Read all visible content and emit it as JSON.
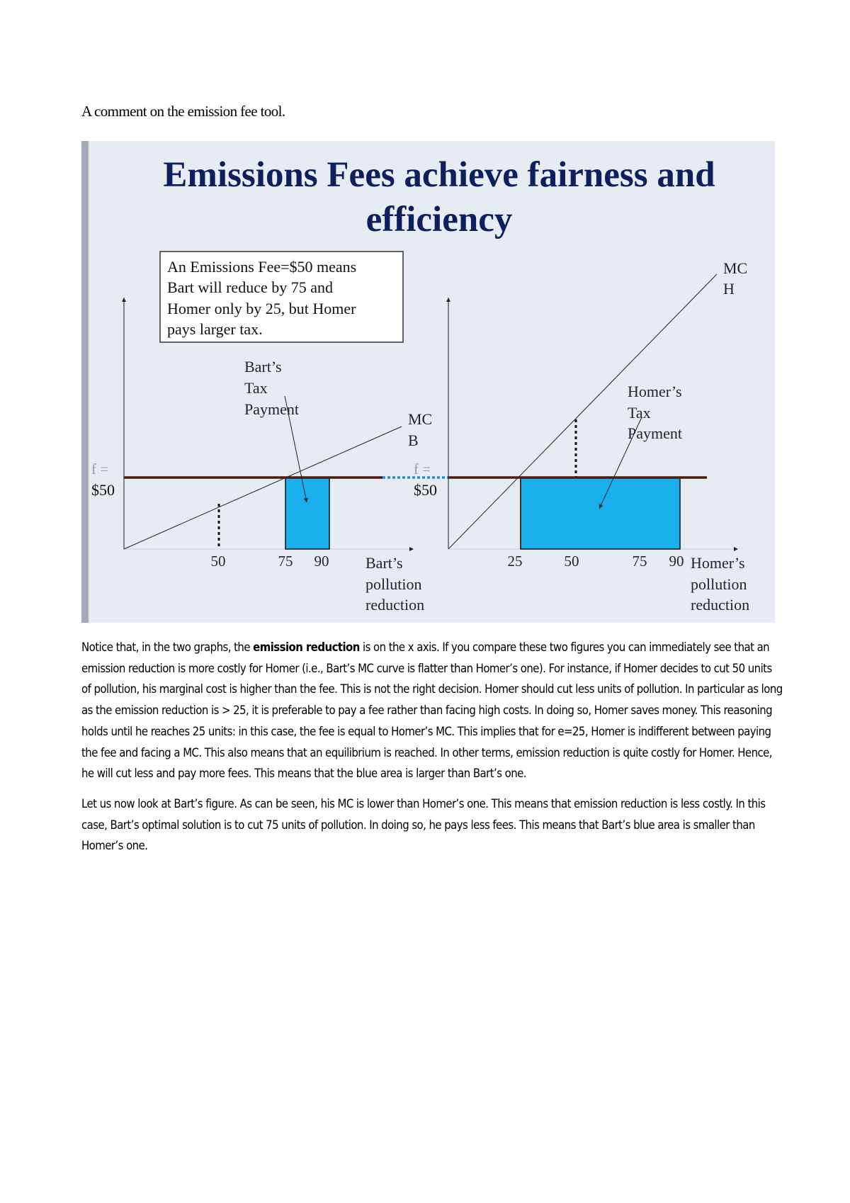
{
  "heading": "A comment on the emission fee tool.",
  "slide": {
    "title_line1": "Emissions Fees achieve fairness and",
    "title_line2": "efficiency",
    "callout": [
      "An Emissions Fee=$50 means",
      "Bart will reduce by 75 and",
      "Homer only by 25, but Homer",
      "pays larger tax."
    ],
    "fee_label_line1": "f =",
    "fee_label_line2": "$50",
    "bart": {
      "tax_label": [
        "Bart’s",
        "Tax",
        "Payment"
      ],
      "mc_label": [
        "MC",
        "B"
      ],
      "ticks": [
        "50",
        "75",
        "90"
      ],
      "xlabel": [
        "Bart’s",
        "pollution",
        "reduction"
      ]
    },
    "homer": {
      "tax_label": [
        "Homer’s",
        "Tax",
        "Payment"
      ],
      "mc_label": [
        "MC",
        "H"
      ],
      "ticks": [
        "25",
        "50",
        "75",
        "90"
      ],
      "xlabel": [
        "Homer’s",
        "pollution",
        "reduction"
      ]
    },
    "colors": {
      "background": "#e7ebf2",
      "title": "#0d1f5c",
      "tax_area": "#19aeec",
      "fee_line": "#4a1a0e",
      "fee_link": "#2a8ad8",
      "fee_label": "#8d99b8"
    }
  },
  "paragraphs": [
    {
      "before": "Notice that, in the two graphs, the ",
      "bold": "emission reduction",
      "after": " is on the x axis. If you compare these two figures you can immediately see that an emission reduction is more costly for Homer (i.e., Bart’s MC curve is flatter than Homer’s one). For instance, if Homer decides to cut 50 units of pollution, his marginal cost is higher than the fee. This is not the right decision. Homer should cut less units of pollution. In particular as long as the emission reduction is > 25, it is preferable to pay a fee rather than facing high costs. In doing so, Homer saves money. This reasoning holds until he reaches 25 units: in this case, the fee is equal to Homer’s MC. This implies that for e=25, Homer is indifferent between paying the fee and facing a MC. This also means that an equilibrium is reached. In other terms, emission reduction is quite costly for Homer. Hence, he will cut less and pay more fees. This means that the blue area is larger than Bart’s one."
    },
    {
      "text": "Let us now look at Bart’s figure. As can be seen, his MC is lower than Homer’s one. This means that emission reduction is less costly. In this case, Bart’s optimal solution is to cut 75 units of pollution. In doing so, he pays less fees. This means that Bart’s blue area is smaller than Homer’s one."
    }
  ]
}
